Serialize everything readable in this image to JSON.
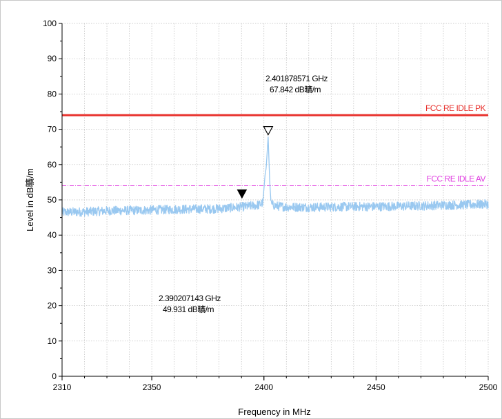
{
  "chart_data": {
    "type": "line",
    "title": "",
    "xlabel": "Frequency in MHz",
    "ylabel": "Level in dB曠/m",
    "xlim": [
      2310,
      2500
    ],
    "ylim": [
      0,
      100
    ],
    "x_ticks": [
      "2310",
      "2350",
      "2400",
      "2450",
      "2500"
    ],
    "y_ticks": [
      "0",
      "10",
      "20",
      "30",
      "40",
      "50",
      "60",
      "70",
      "80",
      "90",
      "100"
    ],
    "grid": true,
    "series": [
      {
        "type": "line",
        "color": "#99c8f0",
        "x": [
          2310,
          2320,
          2330,
          2340,
          2350,
          2360,
          2370,
          2380,
          2390,
          2396,
          2398,
          2399.5,
          2400.5,
          2401,
          2401.88,
          2402.6,
          2403.2,
          2405,
          2410,
          2420,
          2430,
          2440,
          2450,
          2460,
          2470,
          2480,
          2490,
          2500
        ],
        "values": [
          46.5,
          46.6,
          46.9,
          47.0,
          47.1,
          47.3,
          47.4,
          47.5,
          48.0,
          48.4,
          48.6,
          49.2,
          57.0,
          59.0,
          67.842,
          55.0,
          48.8,
          48.3,
          48.0,
          47.9,
          48.0,
          48.1,
          48.1,
          48.2,
          48.3,
          48.5,
          48.6,
          48.8
        ]
      }
    ],
    "limit_lines": [
      {
        "label": "FCC RE IDLE PK",
        "value": 74,
        "color": "#e8302c",
        "style": "solid"
      },
      {
        "label": "FCC RE IDLE AV",
        "value": 54,
        "color": "#e040e0",
        "style": "dash-dot"
      }
    ],
    "markers": [
      {
        "symbol": "open-triangle-down",
        "x": 2401.878571,
        "y": 67.842,
        "label_line1": "2.401878571 GHz",
        "label_line2": "67.842 dB曠/m"
      },
      {
        "symbol": "filled-triangle-down",
        "x": 2390.207143,
        "y": 49.931,
        "label_line1": "2.390207143 GHz",
        "label_line2": "49.931 dB曠/m"
      }
    ]
  }
}
